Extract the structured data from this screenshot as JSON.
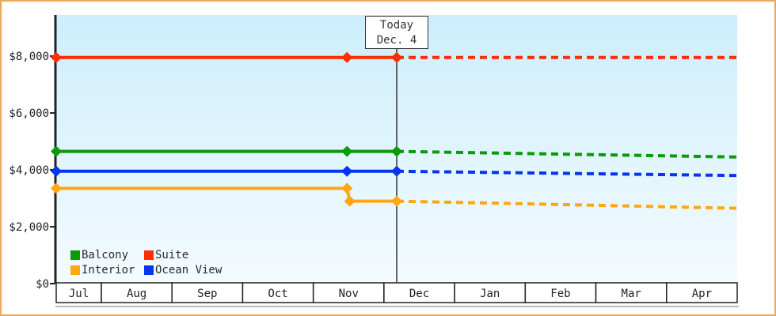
{
  "window": {
    "background": "#ffffff",
    "border_color": "#eaa85e"
  },
  "colors": {
    "axis": "#222222",
    "text": "#222222",
    "today_line": "#333333",
    "month_cell_bg": "#ffffff",
    "month_cell_border": "#222222",
    "underline_gray": "#777777",
    "plot_gradient_top": "#cdeefc",
    "plot_gradient_bottom": "#f4fbfe"
  },
  "chart_data": {
    "type": "line",
    "title": "",
    "x_axis": {
      "tick_labels": [
        "Jul",
        "Aug",
        "Sep",
        "Oct",
        "Nov",
        "Dec",
        "Jan",
        "Feb",
        "Mar",
        "Apr"
      ]
    },
    "y_axis": {
      "tick_values": [
        0,
        2000,
        4000,
        6000,
        8000
      ],
      "tick_labels": [
        "$0",
        "$2,000",
        "$4,000",
        "$6,000",
        "$8,000"
      ],
      "ylim": [
        0,
        9450
      ],
      "grid": false
    },
    "today": {
      "line1": "Today",
      "line2": "Dec. 4",
      "t": 0.5
    },
    "series": [
      {
        "name": "Suite",
        "color": "#fb2e08",
        "solid": [
          {
            "t": 0.0,
            "usd": 7950
          },
          {
            "t": 0.427,
            "usd": 7950
          },
          {
            "t": 0.5,
            "usd": 7950
          }
        ],
        "forecast": [
          {
            "t": 0.5,
            "usd": 7950
          },
          {
            "t": 1.0,
            "usd": 7950
          }
        ]
      },
      {
        "name": "Balcony",
        "color": "#0a9a0a",
        "solid": [
          {
            "t": 0.0,
            "usd": 4650
          },
          {
            "t": 0.427,
            "usd": 4650
          },
          {
            "t": 0.5,
            "usd": 4650
          }
        ],
        "forecast": [
          {
            "t": 0.5,
            "usd": 4650
          },
          {
            "t": 1.0,
            "usd": 4450
          }
        ]
      },
      {
        "name": "Ocean View",
        "color": "#0635f0",
        "solid": [
          {
            "t": 0.0,
            "usd": 3950
          },
          {
            "t": 0.427,
            "usd": 3950
          },
          {
            "t": 0.5,
            "usd": 3950
          }
        ],
        "forecast": [
          {
            "t": 0.5,
            "usd": 3950
          },
          {
            "t": 1.0,
            "usd": 3800
          }
        ]
      },
      {
        "name": "Interior",
        "color": "#ffa713",
        "solid": [
          {
            "t": 0.0,
            "usd": 3350
          },
          {
            "t": 0.427,
            "usd": 3350
          },
          {
            "t": 0.431,
            "usd": 2900
          },
          {
            "t": 0.5,
            "usd": 2900
          }
        ],
        "forecast": [
          {
            "t": 0.5,
            "usd": 2900
          },
          {
            "t": 1.0,
            "usd": 2650
          }
        ]
      }
    ],
    "legend": {
      "rows": [
        [
          {
            "label": "Balcony",
            "color": "#0a9a0a"
          },
          {
            "label": "Suite",
            "color": "#fb2e08"
          }
        ],
        [
          {
            "label": "Interior",
            "color": "#ffa713"
          },
          {
            "label": "Ocean View",
            "color": "#0635f0"
          }
        ]
      ]
    }
  }
}
